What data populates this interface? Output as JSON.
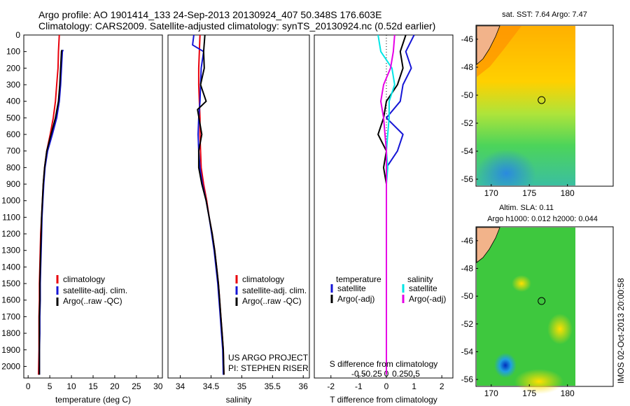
{
  "header": {
    "title_line1": "Argo profile: AO 1901414_133 24-Sep-2013 20130924_407 50.348S 176.603E",
    "title_line2": "Climatology: CARS2009. Satellite-adjusted climatology: synTS_20130924.nc (0.52d earlier)"
  },
  "colors": {
    "clim": "#e8000b",
    "sat": "#1515d6",
    "argo": "#000000",
    "sat_s": "#00e6e6",
    "argo_s": "#e600e6"
  },
  "depth_ticks": [
    "0",
    "100",
    "200",
    "300",
    "400",
    "500",
    "600",
    "700",
    "800",
    "900",
    "1000",
    "1100",
    "1200",
    "1300",
    "1400",
    "1500",
    "1600",
    "1700",
    "1800",
    "1900",
    "2000"
  ],
  "chart_data": [
    {
      "id": "temperature",
      "type": "line",
      "xlabel": "temperature (deg C)",
      "ylabel": "",
      "xlim": [
        -1,
        31
      ],
      "ylim": [
        2070,
        0
      ],
      "xticks": [
        "0",
        "5",
        "10",
        "15",
        "20",
        "25",
        "30"
      ],
      "xtick_values": [
        0,
        5,
        10,
        15,
        20,
        25,
        30
      ],
      "legend": [
        "climatology",
        "satellite-adj. clim.",
        "Argo(..raw -QC)"
      ],
      "series": [
        {
          "name": "climatology",
          "color": "clim",
          "x": [
            7.2,
            7.0,
            6.9,
            6.6,
            6.3,
            5.8,
            5.1,
            4.3,
            3.8,
            3.5,
            3.3,
            3.1,
            2.9,
            2.8,
            2.7,
            2.6,
            2.6,
            2.5,
            2.5,
            2.5,
            2.4
          ],
          "y": [
            0,
            100,
            200,
            300,
            400,
            500,
            600,
            700,
            800,
            900,
            1000,
            1100,
            1200,
            1300,
            1400,
            1500,
            1600,
            1700,
            1800,
            1900,
            2050
          ]
        },
        {
          "name": "satellite-adj. clim.",
          "color": "sat",
          "x": [
            8.1,
            7.9,
            7.7,
            7.5,
            7.2,
            6.6,
            5.6,
            4.5,
            3.9,
            3.6,
            3.4,
            3.2,
            3.1,
            3.0,
            2.9,
            2.8,
            2.8,
            2.7,
            2.7,
            2.6,
            2.6
          ],
          "y": [
            90,
            100,
            200,
            300,
            400,
            500,
            600,
            700,
            800,
            900,
            1000,
            1100,
            1200,
            1300,
            1400,
            1500,
            1600,
            1700,
            1800,
            1900,
            2050
          ]
        },
        {
          "name": "Argo(..raw -QC)",
          "color": "argo",
          "x": [
            7.8,
            7.7,
            7.5,
            7.3,
            7.0,
            6.3,
            5.3,
            4.3,
            3.8,
            3.5,
            3.3,
            3.1,
            3.0,
            2.9,
            2.8,
            2.7,
            2.7,
            2.6,
            2.6,
            2.6,
            2.6
          ],
          "y": [
            90,
            100,
            200,
            300,
            400,
            500,
            600,
            700,
            800,
            900,
            1000,
            1100,
            1200,
            1300,
            1400,
            1500,
            1600,
            1700,
            1800,
            1900,
            2050
          ]
        }
      ]
    },
    {
      "id": "salinity",
      "type": "line",
      "xlabel": "salinity",
      "xlim": [
        33.8,
        36.1
      ],
      "ylim": [
        2070,
        0
      ],
      "xticks": [
        "34",
        "34.5",
        "35",
        "35.5",
        "36"
      ],
      "xtick_values": [
        34,
        34.5,
        35,
        35.5,
        36
      ],
      "legend": [
        "climatology",
        "satellite-adj. clim.",
        "Argo(..raw -QC)"
      ],
      "annotation": [
        "US ARGO PROJECT",
        "PI: STEPHEN RISER"
      ],
      "series": [
        {
          "name": "climatology",
          "color": "clim",
          "x": [
            34.32,
            34.31,
            34.3,
            34.3,
            34.31,
            34.32,
            34.32,
            34.33,
            34.34,
            34.38,
            34.43,
            34.47,
            34.52,
            34.56,
            34.59,
            34.62,
            34.64,
            34.66,
            34.68,
            34.7,
            34.71
          ],
          "y": [
            0,
            100,
            200,
            300,
            400,
            500,
            600,
            700,
            800,
            900,
            1000,
            1100,
            1200,
            1300,
            1400,
            1500,
            1600,
            1700,
            1800,
            1900,
            2050
          ]
        },
        {
          "name": "satellite-adj. clim.",
          "color": "sat",
          "x": [
            34.22,
            34.2,
            34.38,
            34.34,
            34.32,
            34.3,
            34.29,
            34.3,
            34.32,
            34.36,
            34.42,
            34.47,
            34.51,
            34.55,
            34.58,
            34.61,
            34.63,
            34.65,
            34.67,
            34.69,
            34.7
          ],
          "y": [
            0,
            60,
            100,
            200,
            400,
            500,
            600,
            700,
            800,
            900,
            1000,
            1100,
            1200,
            1300,
            1400,
            1500,
            1600,
            1700,
            1800,
            1900,
            2050
          ]
        },
        {
          "name": "Argo(..raw -QC)",
          "color": "argo",
          "x": [
            34.4,
            34.38,
            34.39,
            34.33,
            34.42,
            34.28,
            34.35,
            34.3,
            34.3,
            34.35,
            34.42,
            34.47,
            34.52,
            34.56,
            34.59,
            34.62,
            34.64,
            34.66,
            34.68,
            34.7,
            34.71
          ],
          "y": [
            0,
            100,
            200,
            300,
            400,
            450,
            600,
            700,
            800,
            900,
            1000,
            1100,
            1200,
            1300,
            1400,
            1500,
            1600,
            1700,
            1800,
            1900,
            2050
          ]
        }
      ]
    },
    {
      "id": "difference",
      "type": "line",
      "xlabel": "T difference from climatology",
      "xlabel_top": "S difference from climatology",
      "xlim": [
        -2.6,
        2.4
      ],
      "ylim": [
        2070,
        0
      ],
      "xticks": [
        "-2",
        "-1",
        "0",
        "1",
        "2"
      ],
      "xtick_values": [
        -2,
        -1,
        0,
        1,
        2
      ],
      "top_ticks": [
        "-0.5",
        "-0.25",
        "0",
        "0.25",
        "0.5"
      ],
      "top_tick_values": [
        -1,
        -0.5,
        0,
        0.5,
        1
      ],
      "legend": [
        "temperature",
        "satellite",
        "Argo(-adj)",
        "salinity",
        "satellite",
        "Argo(-adj)"
      ],
      "series": [
        {
          "name": "satellite",
          "color": "sat",
          "x": [
            1.0,
            0.7,
            0.9,
            0.6,
            0.5,
            0.0,
            0.6,
            0.4,
            0.0,
            0.0,
            0.0,
            0.0,
            0.0,
            0.0,
            0.0,
            0.0,
            0.0,
            0.0,
            0.0,
            0.0,
            0.0
          ],
          "y": [
            0,
            100,
            200,
            300,
            400,
            500,
            600,
            700,
            800,
            900,
            1000,
            1100,
            1200,
            1300,
            1400,
            1500,
            1600,
            1700,
            1800,
            1900,
            2050
          ]
        },
        {
          "name": "Argo(-adj)",
          "color": "argo",
          "x": [
            0.7,
            0.5,
            0.6,
            0.4,
            0.0,
            -0.1,
            -0.3,
            0.0,
            -0.1,
            0.0,
            0.0,
            0.0,
            0.0,
            0.0,
            0.0,
            0.0,
            0.0,
            0.0,
            0.0,
            0.0,
            0.0
          ],
          "y": [
            0,
            100,
            200,
            300,
            400,
            500,
            600,
            700,
            800,
            900,
            1000,
            1100,
            1200,
            1300,
            1400,
            1500,
            1600,
            1700,
            1800,
            1900,
            2050
          ]
        },
        {
          "name": "satellite",
          "color": "sat_s",
          "x": [
            -0.3,
            -0.2,
            0.2,
            0.3,
            0.1,
            0.1,
            0.05,
            0.0,
            0.05,
            0.0,
            0.0,
            0.0,
            0.0,
            0.0,
            0.0,
            0.0,
            0.0,
            0.0,
            0.0,
            0.0,
            0.0
          ],
          "y": [
            0,
            100,
            200,
            300,
            400,
            500,
            600,
            700,
            800,
            900,
            1000,
            1100,
            1200,
            1300,
            1400,
            1500,
            1600,
            1700,
            1800,
            1900,
            2050
          ]
        },
        {
          "name": "Argo(-adj)",
          "color": "argo_s",
          "x": [
            0.3,
            0.25,
            0.15,
            -0.1,
            -0.2,
            -0.1,
            -0.05,
            0.0,
            0.0,
            0.0,
            0.0,
            0.0,
            0.0,
            0.0,
            0.0,
            0.0,
            0.0,
            0.0,
            0.0,
            0.0,
            0.0
          ],
          "y": [
            0,
            100,
            200,
            300,
            400,
            500,
            600,
            700,
            800,
            900,
            1000,
            1100,
            1200,
            1300,
            1400,
            1500,
            1600,
            1700,
            1800,
            1900,
            2050
          ]
        }
      ]
    },
    {
      "id": "sst_map",
      "type": "heatmap",
      "title": "sat. SST: 7.64  Argo: 7.47",
      "xlim": [
        168,
        186
      ],
      "ylim": [
        -56.5,
        -45
      ],
      "xticks": [
        "170",
        "175",
        "180"
      ],
      "xtick_values": [
        170,
        175,
        180
      ],
      "yticks": [
        "-46",
        "-48",
        "-50",
        "-52",
        "-54",
        "-56"
      ],
      "ytick_values": [
        -46,
        -48,
        -50,
        -52,
        -54,
        -56
      ],
      "marker": {
        "lon": 176.603,
        "lat": -50.348
      }
    },
    {
      "id": "sla_map",
      "type": "heatmap",
      "title": "Altim. SLA: 0.11",
      "subtitle": "Argo h1000: 0.012  h2000: 0.044",
      "xlim": [
        168,
        186
      ],
      "ylim": [
        -56.5,
        -45
      ],
      "xticks": [
        "170",
        "175",
        "180"
      ],
      "xtick_values": [
        170,
        175,
        180
      ],
      "yticks": [
        "-46",
        "-48",
        "-50",
        "-52",
        "-54",
        "-56"
      ],
      "ytick_values": [
        -46,
        -48,
        -50,
        -52,
        -54,
        -56
      ],
      "marker": {
        "lon": 176.603,
        "lat": -50.348
      }
    }
  ],
  "watermark": "IMOS 02-Oct-2013 20:00:58"
}
